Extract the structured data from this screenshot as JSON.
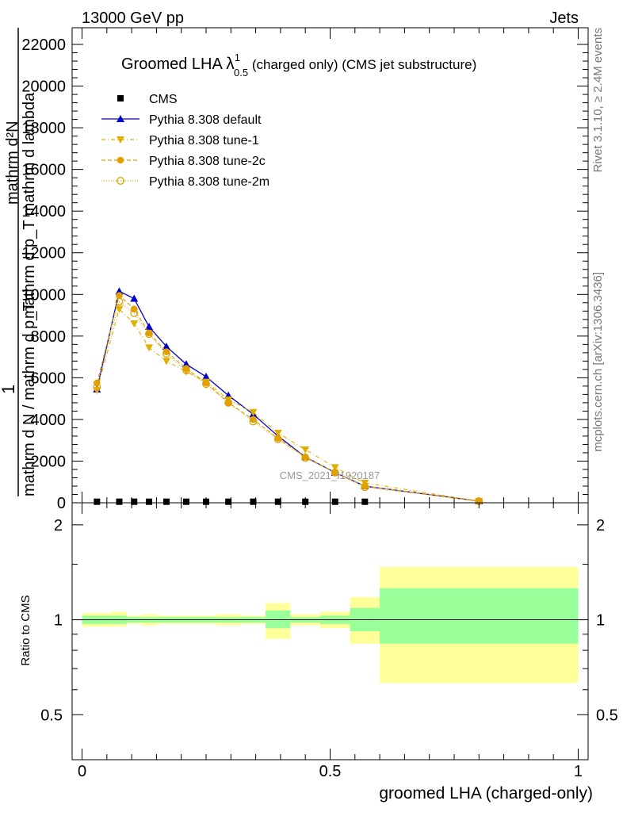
{
  "header": {
    "left": "13000 GeV pp",
    "right": "Jets"
  },
  "side_labels": {
    "rivet": "Rivet 3.1.10, ≥ 2.4M events",
    "mcplots": "mcplots.cern.ch [arXiv:1306.3436]"
  },
  "chart_data": [
    {
      "type": "line",
      "title_main": "Groomed LHA ",
      "title_symbol": "λ",
      "title_sup": "1",
      "title_sub": "0.5",
      "title_rest": " (charged only) (CMS jet substructure)",
      "ylabel_lines": [
        "mathrm d²N",
        "mathrm d p_T mathrm d lambda",
        "1",
        "mathrm d N / mathrm d p_T"
      ],
      "xlabel": "",
      "watermark": "CMS_2021_I1920187",
      "xlim": [
        -0.02,
        1.02
      ],
      "ylim": [
        0,
        22800
      ],
      "y_ticks": [
        0,
        2000,
        4000,
        6000,
        8000,
        10000,
        12000,
        14000,
        16000,
        18000,
        20000,
        22000
      ],
      "y_tick_labels": [
        "0",
        "2000",
        "4000",
        "6000",
        "8000",
        "10000",
        "12000",
        "14000",
        "16000",
        "18000",
        "20000",
        "22000"
      ],
      "legend_position": "top-left",
      "series": [
        {
          "name": "CMS",
          "color": "#000000",
          "marker": "square",
          "x": [
            0.03,
            0.075,
            0.105,
            0.135,
            0.17,
            0.21,
            0.25,
            0.295,
            0.345,
            0.395,
            0.45,
            0.51,
            0.57
          ],
          "y": [
            50,
            50,
            50,
            50,
            50,
            50,
            50,
            50,
            50,
            50,
            50,
            50,
            50
          ]
        },
        {
          "name": "Pythia 8.308 default",
          "color": "#0000cc",
          "marker": "triangle-up",
          "dash": "",
          "x": [
            0.03,
            0.075,
            0.105,
            0.135,
            0.17,
            0.21,
            0.25,
            0.295,
            0.345,
            0.395,
            0.45,
            0.51,
            0.57,
            0.8
          ],
          "y": [
            5450,
            10150,
            9800,
            8450,
            7500,
            6650,
            6050,
            5150,
            4250,
            3200,
            2200,
            1450,
            800,
            80
          ]
        },
        {
          "name": "Pythia 8.308 tune-1",
          "color": "#e0b000",
          "marker": "triangle-down",
          "dash": "5,3,1,3",
          "x": [
            0.03,
            0.075,
            0.105,
            0.135,
            0.17,
            0.21,
            0.25,
            0.295,
            0.345,
            0.395,
            0.45,
            0.51,
            0.57,
            0.8
          ],
          "y": [
            5400,
            9300,
            8600,
            7450,
            6800,
            6300,
            5800,
            4950,
            4350,
            3350,
            2550,
            1700,
            950,
            80
          ]
        },
        {
          "name": "Pythia 8.308 tune-2c",
          "color": "#e0a000",
          "marker": "circle",
          "dash": "5,3",
          "x": [
            0.03,
            0.075,
            0.105,
            0.135,
            0.17,
            0.21,
            0.25,
            0.295,
            0.345,
            0.395,
            0.45,
            0.51,
            0.57,
            0.8
          ],
          "y": [
            5750,
            9950,
            9300,
            8150,
            7250,
            6450,
            5750,
            4800,
            4000,
            3100,
            2200,
            1450,
            800,
            80
          ]
        },
        {
          "name": "Pythia 8.308 tune-2m",
          "color": "#e0a000",
          "marker": "circle-open",
          "dash": "1,2",
          "x": [
            0.03,
            0.075,
            0.105,
            0.135,
            0.17,
            0.21,
            0.25,
            0.295,
            0.345,
            0.395,
            0.45,
            0.51,
            0.57,
            0.8
          ],
          "y": [
            5550,
            9650,
            9100,
            8100,
            7150,
            6350,
            5700,
            4800,
            3900,
            3050,
            2150,
            1450,
            750,
            70
          ]
        }
      ]
    },
    {
      "type": "bar",
      "ylabel": "Ratio to CMS",
      "xlabel": "groomed LHA (charged-only)",
      "xlim": [
        -0.02,
        1.02
      ],
      "ylim": [
        0.36,
        2.35
      ],
      "y_ticks": [
        0.5,
        1,
        2
      ],
      "y_tick_labels": [
        "0.5",
        "1",
        "2"
      ],
      "y_tick_labels_right": [
        "0.5",
        "1",
        "2"
      ],
      "x_ticks": [
        0,
        0.5,
        1
      ],
      "x_tick_labels": [
        "0",
        "0.5",
        "1"
      ],
      "reference_line": 1,
      "bins": [
        {
          "lo": 0.0,
          "hi": 0.06,
          "stat": [
            0.97,
            1.03
          ],
          "syst": [
            0.95,
            1.05
          ]
        },
        {
          "lo": 0.06,
          "hi": 0.09,
          "stat": [
            0.97,
            1.03
          ],
          "syst": [
            0.95,
            1.06
          ]
        },
        {
          "lo": 0.09,
          "hi": 0.12,
          "stat": [
            0.98,
            1.02
          ],
          "syst": [
            0.97,
            1.03
          ]
        },
        {
          "lo": 0.12,
          "hi": 0.15,
          "stat": [
            0.98,
            1.02
          ],
          "syst": [
            0.96,
            1.04
          ]
        },
        {
          "lo": 0.15,
          "hi": 0.19,
          "stat": [
            0.98,
            1.02
          ],
          "syst": [
            0.97,
            1.03
          ]
        },
        {
          "lo": 0.19,
          "hi": 0.23,
          "stat": [
            0.98,
            1.02
          ],
          "syst": [
            0.97,
            1.03
          ]
        },
        {
          "lo": 0.23,
          "hi": 0.27,
          "stat": [
            0.98,
            1.02
          ],
          "syst": [
            0.97,
            1.03
          ]
        },
        {
          "lo": 0.27,
          "hi": 0.32,
          "stat": [
            0.98,
            1.02
          ],
          "syst": [
            0.96,
            1.04
          ]
        },
        {
          "lo": 0.32,
          "hi": 0.37,
          "stat": [
            0.98,
            1.02
          ],
          "syst": [
            0.97,
            1.03
          ]
        },
        {
          "lo": 0.37,
          "hi": 0.42,
          "stat": [
            0.94,
            1.07
          ],
          "syst": [
            0.87,
            1.13
          ]
        },
        {
          "lo": 0.42,
          "hi": 0.48,
          "stat": [
            0.98,
            1.02
          ],
          "syst": [
            0.96,
            1.04
          ]
        },
        {
          "lo": 0.48,
          "hi": 0.54,
          "stat": [
            0.97,
            1.03
          ],
          "syst": [
            0.94,
            1.06
          ]
        },
        {
          "lo": 0.54,
          "hi": 0.6,
          "stat": [
            0.92,
            1.09
          ],
          "syst": [
            0.84,
            1.18
          ]
        },
        {
          "lo": 0.6,
          "hi": 1.0,
          "stat": [
            0.84,
            1.26
          ],
          "syst": [
            0.63,
            1.47
          ]
        }
      ]
    }
  ]
}
